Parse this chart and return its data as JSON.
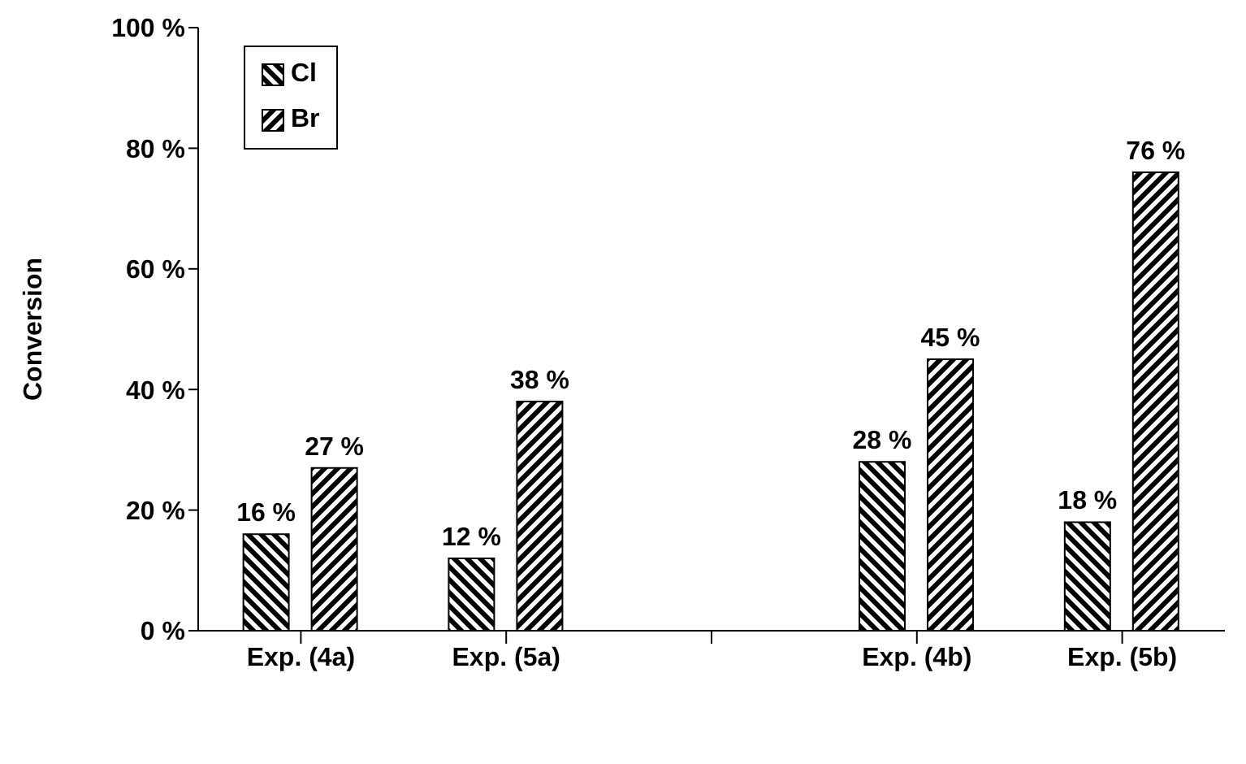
{
  "chart_data": {
    "type": "bar",
    "ylabel": "Conversion",
    "categories": [
      "Exp. (4a)",
      "Exp. (5a)",
      null,
      "Exp. (4b)",
      "Exp. (5b)"
    ],
    "series": [
      {
        "name": "Cl",
        "color": "#000000",
        "values": [
          16,
          12,
          null,
          28,
          18
        ],
        "value_labels": [
          "16 %",
          "12 %",
          null,
          "28 %",
          "18 %"
        ]
      },
      {
        "name": "Br",
        "color": "#000000",
        "values": [
          27,
          38,
          null,
          45,
          76
        ],
        "value_labels": [
          "27 %",
          "38 %",
          null,
          "45 %",
          "76 %"
        ]
      }
    ],
    "ylim": [
      0,
      100
    ],
    "yticks": [
      {
        "value": 0,
        "label": "0 %"
      },
      {
        "value": 20,
        "label": "20 %"
      },
      {
        "value": 40,
        "label": "40 %"
      },
      {
        "value": 60,
        "label": "60 %"
      },
      {
        "value": 80,
        "label": "80 %"
      },
      {
        "value": 100,
        "label": "100 %"
      }
    ],
    "grid": false,
    "legend": "top left"
  }
}
